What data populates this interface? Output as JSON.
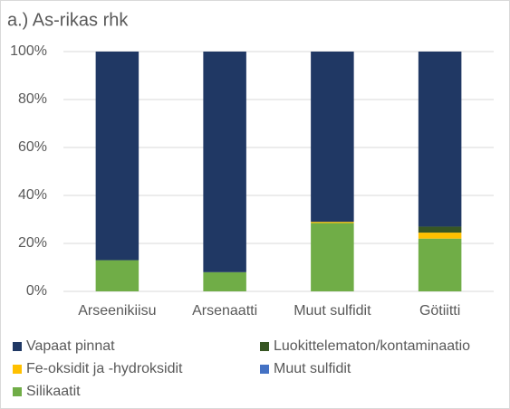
{
  "chart_data": {
    "type": "stacked_bar",
    "title": "a.) As-rikas rhk",
    "categories": [
      "Arseenikiisu",
      "Arsenaatti",
      "Muut sulfidit",
      "Götiitti"
    ],
    "series": [
      {
        "name": "Silikaatit",
        "color": "#70ad47",
        "values": [
          13,
          8,
          28.5,
          22
        ]
      },
      {
        "name": "Muut sulfidit",
        "color": "#4472c4",
        "values": [
          0,
          0,
          0,
          0
        ]
      },
      {
        "name": "Fe-oksidit ja -hydroksidit",
        "color": "#ffc000",
        "values": [
          0,
          0,
          0.5,
          2.5
        ]
      },
      {
        "name": "Luokittelematon/kontaminaatio",
        "color": "#375623",
        "values": [
          0,
          0,
          0,
          2.5
        ]
      },
      {
        "name": "Vapaat pinnat",
        "color": "#203864",
        "values": [
          87,
          92,
          71,
          73
        ]
      }
    ],
    "ylim": [
      0,
      100
    ],
    "yticks": [
      {
        "value": 0,
        "label": "0%"
      },
      {
        "value": 20,
        "label": "20%"
      },
      {
        "value": 40,
        "label": "40%"
      },
      {
        "value": 60,
        "label": "60%"
      },
      {
        "value": 80,
        "label": "80%"
      },
      {
        "value": 100,
        "label": "100%"
      }
    ],
    "grid": true
  }
}
